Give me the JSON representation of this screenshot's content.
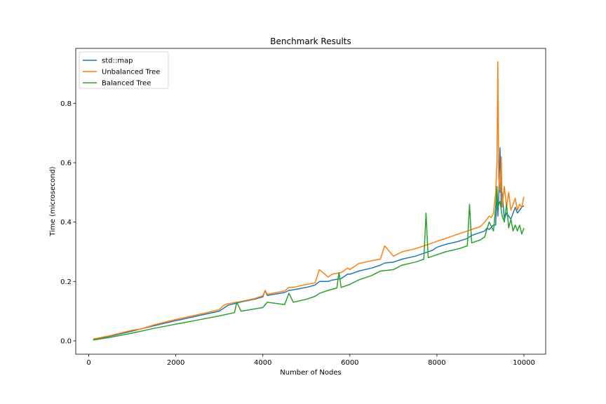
{
  "chart_data": {
    "type": "line",
    "title": "Benchmark Results",
    "xlabel": "Number of Nodes",
    "ylabel": "Time (microsecond)",
    "xlim": [
      -300,
      10500
    ],
    "ylim": [
      -0.045,
      0.985
    ],
    "xticks": [
      0,
      2000,
      4000,
      6000,
      8000,
      10000
    ],
    "xtick_labels": [
      "0",
      "2000",
      "4000",
      "6000",
      "8000",
      "10000"
    ],
    "yticks": [
      0.0,
      0.2,
      0.4,
      0.6,
      0.8
    ],
    "ytick_labels": [
      "0.0",
      "0.2",
      "0.4",
      "0.6",
      "0.8"
    ],
    "grid": false,
    "legend_position": "top-left",
    "series": [
      {
        "name": "std::map",
        "color": "#1f77b4",
        "x": [
          100,
          500,
          1000,
          1500,
          2000,
          2500,
          3000,
          3100,
          3200,
          3400,
          3500,
          3800,
          4000,
          4050,
          4100,
          4500,
          4600,
          4700,
          5000,
          5200,
          5300,
          5500,
          5600,
          5800,
          5950,
          6000,
          6200,
          6500,
          6700,
          6800,
          7000,
          7200,
          7500,
          7700,
          7900,
          8000,
          8200,
          8500,
          8700,
          8800,
          9000,
          9100,
          9150,
          9200,
          9300,
          9350,
          9380,
          9400,
          9420,
          9450,
          9480,
          9500,
          9550,
          9600,
          9650,
          9700,
          9750,
          9800,
          9850,
          9900,
          9950,
          10000
        ],
        "y": [
          0.004,
          0.016,
          0.033,
          0.051,
          0.068,
          0.084,
          0.1,
          0.11,
          0.12,
          0.127,
          0.131,
          0.14,
          0.148,
          0.17,
          0.153,
          0.163,
          0.17,
          0.172,
          0.18,
          0.188,
          0.2,
          0.2,
          0.205,
          0.21,
          0.225,
          0.224,
          0.235,
          0.245,
          0.255,
          0.262,
          0.265,
          0.275,
          0.285,
          0.295,
          0.305,
          0.315,
          0.325,
          0.335,
          0.345,
          0.355,
          0.365,
          0.37,
          0.38,
          0.375,
          0.39,
          0.39,
          0.5,
          0.42,
          0.48,
          0.65,
          0.45,
          0.5,
          0.41,
          0.43,
          0.42,
          0.41,
          0.43,
          0.45,
          0.43,
          0.44,
          0.45,
          0.455
        ]
      },
      {
        "name": "Unbalanced Tree",
        "color": "#ff7f0e",
        "x": [
          100,
          500,
          1000,
          1200,
          1500,
          2000,
          2500,
          3000,
          3100,
          3200,
          3400,
          3500,
          3800,
          4000,
          4050,
          4100,
          4500,
          4600,
          4700,
          5000,
          5200,
          5300,
          5500,
          5600,
          5800,
          5950,
          6000,
          6200,
          6500,
          6700,
          6800,
          7000,
          7200,
          7500,
          7700,
          7900,
          8000,
          8200,
          8500,
          8700,
          8800,
          9000,
          9100,
          9150,
          9200,
          9250,
          9300,
          9350,
          9380,
          9400,
          9420,
          9450,
          9480,
          9500,
          9550,
          9600,
          9650,
          9700,
          9750,
          9800,
          9850,
          9900,
          9950,
          10000
        ],
        "y": [
          0.006,
          0.018,
          0.036,
          0.04,
          0.054,
          0.072,
          0.088,
          0.105,
          0.12,
          0.125,
          0.13,
          0.133,
          0.142,
          0.152,
          0.17,
          0.157,
          0.168,
          0.18,
          0.18,
          0.19,
          0.195,
          0.24,
          0.215,
          0.225,
          0.23,
          0.245,
          0.24,
          0.26,
          0.27,
          0.275,
          0.32,
          0.285,
          0.3,
          0.31,
          0.32,
          0.33,
          0.335,
          0.345,
          0.36,
          0.37,
          0.375,
          0.385,
          0.4,
          0.41,
          0.42,
          0.415,
          0.43,
          0.5,
          0.6,
          0.94,
          0.55,
          0.5,
          0.62,
          0.45,
          0.52,
          0.45,
          0.5,
          0.44,
          0.46,
          0.48,
          0.44,
          0.46,
          0.45,
          0.485
        ]
      },
      {
        "name": "Balanced Tree",
        "color": "#2ca02c",
        "x": [
          100,
          500,
          1000,
          1500,
          2000,
          2500,
          3000,
          3350,
          3400,
          3500,
          4000,
          4100,
          4500,
          4600,
          4700,
          5000,
          5200,
          5300,
          5500,
          5700,
          5750,
          5800,
          6000,
          6200,
          6500,
          6700,
          7000,
          7200,
          7500,
          7700,
          7750,
          7800,
          8000,
          8200,
          8500,
          8700,
          8750,
          8800,
          9000,
          9100,
          9200,
          9300,
          9350,
          9380,
          9400,
          9450,
          9500,
          9550,
          9600,
          9650,
          9700,
          9750,
          9800,
          9850,
          9900,
          9950,
          10000
        ],
        "y": [
          0.003,
          0.012,
          0.026,
          0.042,
          0.056,
          0.07,
          0.084,
          0.095,
          0.13,
          0.1,
          0.112,
          0.13,
          0.122,
          0.16,
          0.13,
          0.14,
          0.15,
          0.16,
          0.17,
          0.178,
          0.23,
          0.18,
          0.19,
          0.205,
          0.22,
          0.235,
          0.24,
          0.255,
          0.265,
          0.275,
          0.43,
          0.28,
          0.29,
          0.3,
          0.31,
          0.32,
          0.46,
          0.33,
          0.34,
          0.35,
          0.4,
          0.37,
          0.45,
          0.52,
          0.45,
          0.47,
          0.42,
          0.4,
          0.46,
          0.38,
          0.41,
          0.37,
          0.39,
          0.37,
          0.39,
          0.36,
          0.38
        ]
      }
    ]
  }
}
